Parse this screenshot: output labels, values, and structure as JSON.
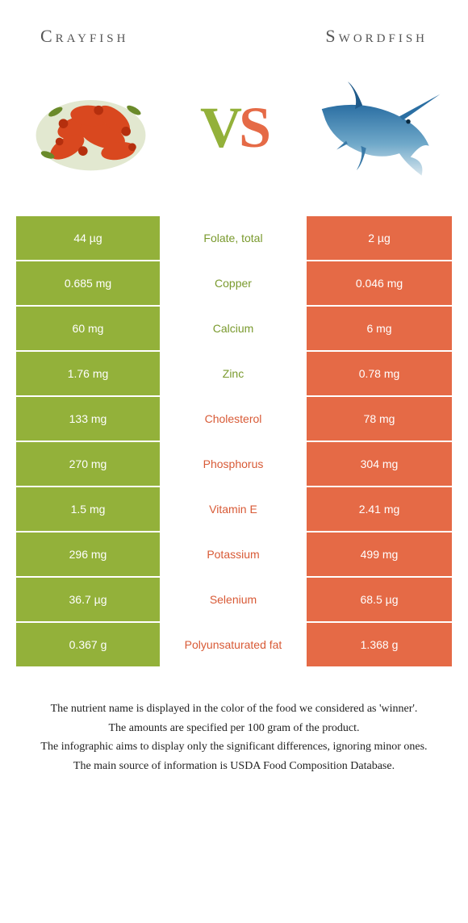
{
  "header": {
    "left_title": "Crayfish",
    "right_title": "Swordfish",
    "vs_v": "V",
    "vs_s": "S"
  },
  "colors": {
    "left_bg": "#93b13a",
    "left_text": "#ffffff",
    "right_bg": "#e56a46",
    "right_text": "#ffffff",
    "mid_bg": "#ffffff",
    "mid_left_text": "#7a9a2e",
    "mid_right_text": "#d85a36",
    "vs_left": "#93b13a",
    "vs_right": "#e56a46"
  },
  "rows": [
    {
      "left": "44 µg",
      "label": "Folate, total",
      "right": "2 µg",
      "winner": "left"
    },
    {
      "left": "0.685 mg",
      "label": "Copper",
      "right": "0.046 mg",
      "winner": "left"
    },
    {
      "left": "60 mg",
      "label": "Calcium",
      "right": "6 mg",
      "winner": "left"
    },
    {
      "left": "1.76 mg",
      "label": "Zinc",
      "right": "0.78 mg",
      "winner": "left"
    },
    {
      "left": "133 mg",
      "label": "Cholesterol",
      "right": "78 mg",
      "winner": "right"
    },
    {
      "left": "270 mg",
      "label": "Phosphorus",
      "right": "304 mg",
      "winner": "right"
    },
    {
      "left": "1.5 mg",
      "label": "Vitamin E",
      "right": "2.41 mg",
      "winner": "right"
    },
    {
      "left": "296 mg",
      "label": "Potassium",
      "right": "499 mg",
      "winner": "right"
    },
    {
      "left": "36.7 µg",
      "label": "Selenium",
      "right": "68.5 µg",
      "winner": "right"
    },
    {
      "left": "0.367 g",
      "label": "Polyunsaturated fat",
      "right": "1.368 g",
      "winner": "right"
    }
  ],
  "footnotes": [
    "The nutrient name is displayed in the color of the food we considered as 'winner'.",
    "The amounts are specified per 100 gram of the product.",
    "The infographic aims to display only the significant differences, ignoring minor ones.",
    "The main source of information is USDA Food Composition Database."
  ]
}
